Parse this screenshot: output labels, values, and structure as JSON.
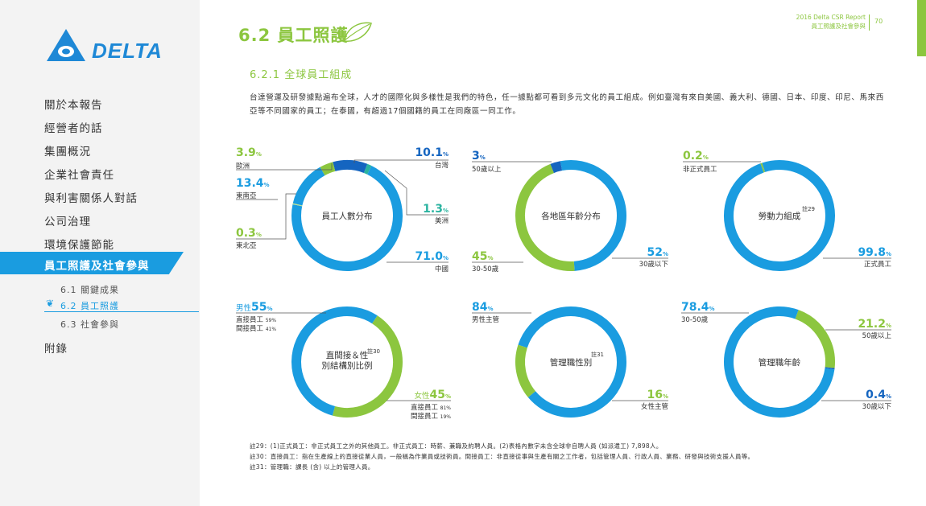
{
  "header": {
    "report_title": "2016 Delta CSR Report",
    "chapter": "員工照護及社會參與",
    "page_number": "70"
  },
  "logo": {
    "wordmark": "DELTA"
  },
  "nav": {
    "items": [
      "關於本報告",
      "經營者的話",
      "集團概況",
      "企業社會責任",
      "與利害關係人對話",
      "公司治理",
      "環境保護節能"
    ],
    "active": "員工照護及社會參與",
    "sub_items": [
      "6.1 關鍵成果",
      "6.2 員工照護",
      "6.3 社會參與"
    ],
    "last": "附錄"
  },
  "section": {
    "title": "6.2 員工照護",
    "subtitle": "6.2.1 全球員工組成",
    "intro": "台達營運及研發據點遍布全球，人才的國際化與多樣性是我們的特色，任一據點都可看到多元文化的員工組成。例如臺灣有來自美國、義大利、德國、日本、印度、印尼、馬來西亞等不同國家的員工；在泰國，有超過17個國籍的員工在同廠區一同工作。"
  },
  "colors": {
    "blue": "#1a9ce0",
    "green": "#8cc63f",
    "dark_blue": "#1565c0",
    "light_green": "#bfe38a"
  },
  "chart_data": [
    {
      "type": "pie",
      "title": "員工人數分布",
      "labels": [
        {
          "name": "台灣",
          "value": 10.1,
          "unit": "%"
        },
        {
          "name": "美洲",
          "value": 1.3,
          "unit": "%"
        },
        {
          "name": "中國",
          "value": 71.0,
          "unit": "%"
        },
        {
          "name": "東北亞",
          "value": 0.3,
          "unit": "%"
        },
        {
          "name": "東南亞",
          "value": 13.4,
          "unit": "%"
        },
        {
          "name": "歐洲",
          "value": 3.9,
          "unit": "%"
        }
      ]
    },
    {
      "type": "pie",
      "title": "各地區年齡分布",
      "labels": [
        {
          "name": "50歲以上",
          "value": 3,
          "unit": "%"
        },
        {
          "name": "30歲以下",
          "value": 52,
          "unit": "%"
        },
        {
          "name": "30-50歲",
          "value": 45,
          "unit": "%"
        }
      ]
    },
    {
      "type": "pie",
      "title": "勞動力組成",
      "note": "註29",
      "labels": [
        {
          "name": "非正式員工",
          "value": 0.2,
          "unit": "%"
        },
        {
          "name": "正式員工",
          "value": 99.8,
          "unit": "%"
        }
      ]
    },
    {
      "type": "pie",
      "title": "直間接＆性別結構別比例",
      "note": "註30",
      "labels": [
        {
          "name": "男性",
          "value": 55,
          "unit": "%",
          "detail": [
            {
              "name": "直接員工",
              "value": "59%"
            },
            {
              "name": "間接員工",
              "value": "41%"
            }
          ]
        },
        {
          "name": "女性",
          "value": 45,
          "unit": "%",
          "detail": [
            {
              "name": "直接員工",
              "value": "81%"
            },
            {
              "name": "間接員工",
              "value": "19%"
            }
          ]
        }
      ]
    },
    {
      "type": "pie",
      "title": "管理職性別",
      "note": "註31",
      "labels": [
        {
          "name": "男性主管",
          "value": 84,
          "unit": "%"
        },
        {
          "name": "女性主管",
          "value": 16,
          "unit": "%"
        }
      ]
    },
    {
      "type": "pie",
      "title": "管理職年齡",
      "labels": [
        {
          "name": "30-50歲",
          "value": 78.4,
          "unit": "%"
        },
        {
          "name": "50歲以上",
          "value": 21.2,
          "unit": "%"
        },
        {
          "name": "30歲以下",
          "value": 0.4,
          "unit": "%"
        }
      ]
    }
  ],
  "notes": [
    "註29：(1)正式員工：非正式員工之外的其他員工。非正式員工：時薪、兼職及約聘人員。(2)表格內數字未含全球非自聘人員 (如派遣工) 7,898人。",
    "註30：直接員工：指在生產線上的直接從業人員，一般稱為作業員或技術員。間接員工：非直接從事與生產有關之工作者，包括管理人員、行政人員、業務、研發與技術支援人員等。",
    "註31：管理職：課長 (含) 以上的管理人員。"
  ]
}
